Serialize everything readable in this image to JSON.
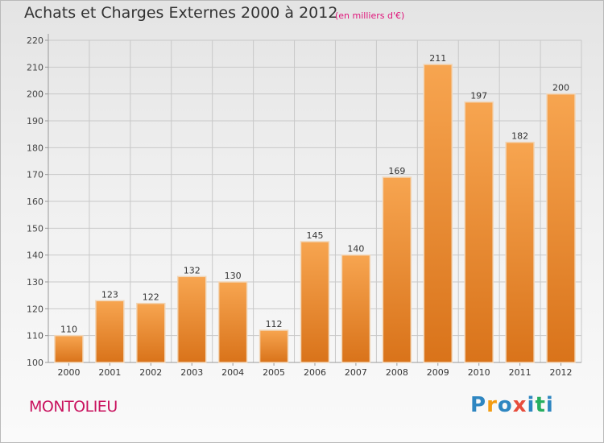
{
  "title": "Achats et Charges Externes 2000 à 2012",
  "subtitle": "(en milliers d'€)",
  "commune": "MONTOLIEU",
  "brand": "Proxiti",
  "brand_colors": [
    "#2e86c1",
    "#f39c12",
    "#2e86c1",
    "#e74c3c",
    "#2e86c1",
    "#27ae60",
    "#2e86c1"
  ],
  "colors": {
    "bar_top": "#f7a550",
    "bar_bottom": "#d9731a",
    "bar_edge": "#f1d6b8",
    "grid": "#c8c8c8"
  },
  "chart_data": {
    "type": "bar",
    "categories": [
      "2000",
      "2001",
      "2002",
      "2003",
      "2004",
      "2005",
      "2006",
      "2007",
      "2008",
      "2009",
      "2010",
      "2011",
      "2012"
    ],
    "values": [
      110,
      123,
      122,
      132,
      130,
      112,
      145,
      140,
      169,
      211,
      197,
      182,
      200
    ],
    "title": "Achats et Charges Externes 2000 à 2012",
    "ylim": [
      100,
      220
    ],
    "yticks": [
      100,
      110,
      120,
      130,
      140,
      150,
      160,
      170,
      180,
      190,
      200,
      210,
      220
    ],
    "grid": true,
    "data_labels": true
  }
}
